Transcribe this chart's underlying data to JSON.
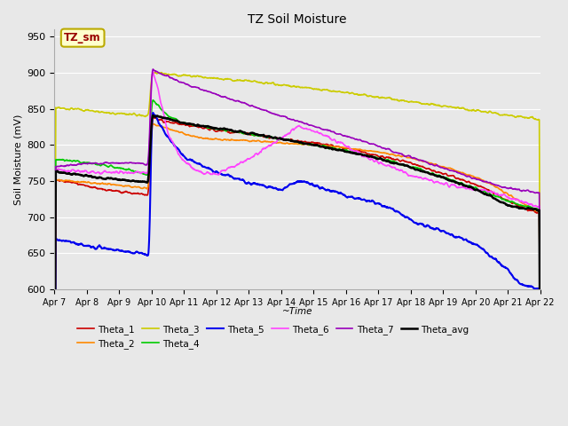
{
  "title": "TZ Soil Moisture",
  "xlabel": "~Time",
  "ylabel": "Soil Moisture (mV)",
  "ylim": [
    600,
    960
  ],
  "yticks": [
    600,
    650,
    700,
    750,
    800,
    850,
    900,
    950
  ],
  "fig_facecolor": "#e8e8e8",
  "plot_facecolor": "#e8e8e8",
  "grid_color": "#ffffff",
  "series_order": [
    "Theta_1",
    "Theta_2",
    "Theta_3",
    "Theta_4",
    "Theta_5",
    "Theta_6",
    "Theta_7",
    "Theta_avg"
  ],
  "series": {
    "Theta_1": {
      "color": "#cc0000",
      "lw": 1.2
    },
    "Theta_2": {
      "color": "#ff8800",
      "lw": 1.2
    },
    "Theta_3": {
      "color": "#cccc00",
      "lw": 1.2
    },
    "Theta_4": {
      "color": "#00cc00",
      "lw": 1.2
    },
    "Theta_5": {
      "color": "#0000ee",
      "lw": 1.5
    },
    "Theta_6": {
      "color": "#ff44ff",
      "lw": 1.2
    },
    "Theta_7": {
      "color": "#9900bb",
      "lw": 1.2
    },
    "Theta_avg": {
      "color": "#000000",
      "lw": 1.8
    }
  },
  "xtick_labels": [
    "Apr 7",
    "Apr 8",
    "Apr 9",
    "Apr 10",
    "Apr 11",
    "Apr 12",
    "Apr 13",
    "Apr 14",
    "Apr 15",
    "Apr 16",
    "Apr 17",
    "Apr 18",
    "Apr 19",
    "Apr 20",
    "Apr 21",
    "Apr 22"
  ],
  "annotation_text": "TZ_sm",
  "annotation_color": "#990000",
  "annotation_bg": "#ffffcc",
  "annotation_border": "#bbaa00"
}
